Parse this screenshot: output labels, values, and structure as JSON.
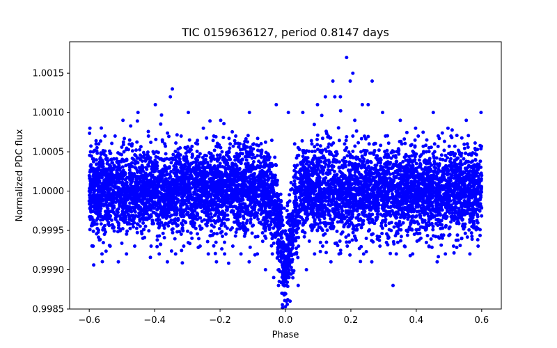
{
  "chart_data": {
    "type": "scatter",
    "title": "TIC 0159636127, period 0.8147 days",
    "xlabel": "Phase",
    "ylabel": "Normalized PDC flux",
    "xlim": [
      -0.66,
      0.66
    ],
    "ylim": [
      0.9985,
      1.0019
    ],
    "xticks": [
      -0.6,
      -0.4,
      -0.2,
      0.0,
      0.2,
      0.4,
      0.6
    ],
    "xtick_labels": [
      "−0.6",
      "−0.4",
      "−0.2",
      "0.0",
      "0.2",
      "0.4",
      "0.6"
    ],
    "yticks": [
      0.9985,
      0.999,
      0.9995,
      1.0,
      1.0005,
      1.001,
      1.0015
    ],
    "ytick_labels": [
      "0.9985",
      "0.9990",
      "0.9995",
      "1.0000",
      "1.0005",
      "1.0010",
      "1.0015"
    ],
    "grid": false,
    "marker_color": "#0000ff",
    "series": [
      {
        "x": [
          -0.6,
          -0.58,
          -0.56,
          -0.54,
          -0.52,
          -0.5,
          -0.48,
          -0.46,
          -0.44,
          -0.42,
          -0.4,
          -0.38,
          -0.36,
          -0.34,
          -0.32,
          -0.3,
          -0.28,
          -0.26,
          -0.24,
          -0.22,
          -0.2,
          -0.18,
          -0.16,
          -0.14,
          -0.12,
          -0.1,
          -0.08,
          -0.06,
          -0.04,
          -0.02,
          0.0,
          0.02,
          0.04,
          0.06,
          0.08,
          0.1,
          0.12,
          0.14,
          0.16,
          0.18,
          0.2,
          0.22,
          0.24,
          0.26,
          0.28,
          0.3,
          0.32,
          0.34,
          0.36,
          0.38,
          0.4,
          0.42,
          0.44,
          0.46,
          0.48,
          0.5,
          0.52,
          0.54,
          0.56,
          0.58,
          0.6,
          -0.598,
          -0.552,
          -0.497,
          -0.451,
          -0.398,
          -0.352,
          -0.297,
          -0.251,
          -0.198,
          -0.152,
          -0.097,
          -0.051,
          -0.031,
          -0.012,
          0.009,
          0.028,
          0.053,
          0.098,
          0.151,
          0.198,
          0.253,
          0.297,
          0.351,
          0.398,
          0.452,
          0.497,
          0.553,
          0.598,
          -0.588,
          -0.561,
          -0.536,
          -0.511,
          -0.486,
          -0.461,
          -0.436,
          -0.411,
          -0.386,
          -0.361,
          -0.336,
          -0.311,
          -0.286,
          -0.261,
          -0.236,
          -0.211,
          -0.186,
          -0.161,
          -0.136,
          -0.111,
          -0.086,
          -0.061,
          -0.036,
          -0.011,
          0.014,
          0.039,
          0.064,
          0.089,
          0.114,
          0.139,
          0.164,
          0.189,
          0.214,
          0.239,
          0.264,
          0.289,
          0.314,
          0.339,
          0.364,
          0.389,
          0.414,
          0.439,
          0.464,
          0.489,
          0.514,
          0.539,
          0.564,
          0.589,
          -0.596,
          -0.571,
          -0.546,
          -0.521,
          -0.494,
          -0.469,
          -0.444,
          -0.419,
          -0.394,
          -0.369,
          -0.344,
          -0.319,
          -0.294,
          -0.269,
          -0.244,
          -0.219,
          -0.194,
          -0.169,
          -0.144,
          -0.119,
          -0.094,
          -0.069,
          -0.044,
          -0.019,
          0.006,
          0.031,
          0.056,
          0.081,
          0.106,
          0.131,
          0.156,
          0.181,
          0.206,
          0.231,
          0.256,
          0.281,
          0.306,
          0.331,
          0.356,
          0.381,
          0.406,
          0.431,
          0.456,
          0.481,
          0.506,
          0.531,
          0.556,
          0.581,
          -0.002,
          0.004,
          -0.006,
          0.011,
          -0.014,
          0.017,
          0.003,
          -0.009,
          0.008,
          0.001,
          0.187,
          0.206,
          0.265,
          0.329,
          -0.346,
          0.122,
          0.168,
          -0.028,
          0.009,
          0.145,
          0.212,
          -0.11,
          0.235
        ],
        "y": [
          1.0,
          0.9998,
          1.0002,
          0.9999,
          1.0001,
          1.0,
          0.9997,
          1.0003,
          1.0,
          0.9998,
          1.0001,
          1.0002,
          0.9999,
          1.0,
          1.0003,
          0.9998,
          1.0001,
          1.0,
          0.9999,
          1.0002,
          1.0,
          0.9998,
          1.0001,
          0.9999,
          0.9998,
          0.9997,
          0.9996,
          0.9994,
          0.9992,
          0.999,
          0.9989,
          0.9991,
          0.9993,
          0.9996,
          0.9998,
          0.9999,
          1.0,
          1.0001,
          1.0,
          1.0002,
          0.9999,
          1.0001,
          1.0,
          1.0002,
          0.9998,
          1.0,
          1.0001,
          0.9999,
          1.0002,
          1.0,
          0.9998,
          1.0001,
          1.0,
          0.9999,
          1.0002,
          1.0,
          0.9998,
          1.0001,
          0.9999,
          1.0,
          1.0002,
          1.0008,
          1.0007,
          1.0009,
          1.001,
          1.0011,
          1.0012,
          1.001,
          1.0008,
          1.0009,
          1.0007,
          1.0006,
          1.0004,
          1.0002,
          0.9998,
          0.9997,
          1.0006,
          1.001,
          1.0011,
          1.0012,
          1.0014,
          1.0011,
          1.001,
          1.0009,
          1.0008,
          1.001,
          1.0008,
          1.0009,
          1.001,
          0.9993,
          0.9992,
          0.9993,
          0.9991,
          0.9992,
          0.9993,
          0.9994,
          0.9993,
          0.9992,
          0.9991,
          0.9992,
          0.9993,
          0.9994,
          0.9993,
          0.9992,
          0.9991,
          0.9992,
          0.9993,
          0.9992,
          0.9991,
          0.9992,
          0.999,
          0.9989,
          0.9987,
          0.9986,
          0.9988,
          0.999,
          0.9992,
          0.9993,
          0.9991,
          0.9992,
          0.9993,
          0.9994,
          0.9992,
          0.9991,
          0.9993,
          0.9994,
          0.9992,
          0.9993,
          0.9992,
          0.9994,
          0.9993,
          0.9991,
          0.9992,
          0.9993,
          0.9994,
          0.9992,
          0.9993,
          1.0005,
          1.0006,
          1.0004,
          1.0007,
          1.0005,
          1.0006,
          1.0004,
          1.0007,
          1.0005,
          1.0006,
          1.0004,
          1.0007,
          1.0005,
          1.0006,
          1.0004,
          1.0007,
          1.0005,
          1.0006,
          1.0004,
          1.0005,
          1.0003,
          1.0002,
          1.0,
          0.9998,
          0.9996,
          1.0003,
          1.0004,
          1.0006,
          1.0005,
          1.0007,
          1.0005,
          1.0006,
          1.0007,
          1.0005,
          1.0006,
          1.0004,
          1.0007,
          1.0005,
          1.0006,
          1.0004,
          1.0007,
          1.0005,
          1.0006,
          1.0004,
          1.0007,
          1.0005,
          1.0006,
          1.0004,
          0.9987,
          0.9988,
          0.999,
          0.9989,
          0.9991,
          0.9992,
          0.9986,
          0.9987,
          0.9989,
          0.999,
          1.0017,
          1.0015,
          1.0014,
          0.9988,
          1.0013,
          1.0012,
          1.0012,
          1.0011,
          1.001,
          1.0014,
          1.0009,
          1.001,
          1.0011
        ]
      }
    ]
  }
}
